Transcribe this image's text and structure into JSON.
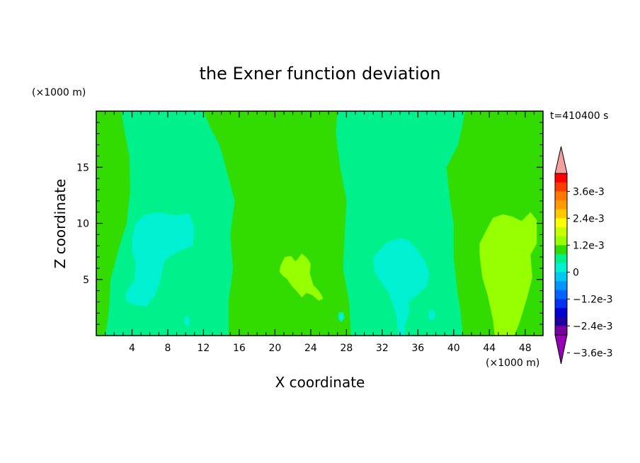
{
  "chart_data": {
    "type": "contour",
    "title": "the Exner function deviation",
    "xlabel": "X coordinate",
    "ylabel": "Z coordinate",
    "x_unit": "(×1000 m)",
    "y_unit": "(×1000 m)",
    "time_label": "t=410400 s",
    "xlim": [
      0,
      50
    ],
    "ylim": [
      0,
      20
    ],
    "x_ticks": [
      "4",
      "8",
      "12",
      "16",
      "20",
      "24",
      "28",
      "32",
      "36",
      "40",
      "44",
      "48"
    ],
    "y_ticks": [
      "5",
      "10",
      "15"
    ],
    "colorbar": {
      "tick_labels": [
        "3.6e-3",
        "2.4e-3",
        "1.2e-3",
        "0",
        "−1.2e-3",
        "−2.4e-3",
        "−3.6e-3"
      ],
      "levels_top_to_bottom": [
        0.0045,
        0.004,
        0.0035,
        0.003,
        0.0025,
        0.002,
        0.0015,
        0.001,
        0.0005,
        0,
        -0.0005,
        -0.001,
        -0.0015,
        -0.002,
        -0.0025,
        -0.003,
        -0.0035,
        -0.004,
        -0.0045
      ],
      "colors_top_to_bottom": [
        "#f4a0a0",
        "#ff0000",
        "#ff3c00",
        "#ff7800",
        "#ff9b00",
        "#ffc800",
        "#ffff00",
        "#c8ff00",
        "#96ff00",
        "#32dc00",
        "#00f08c",
        "#00f0d2",
        "#00c8f0",
        "#0096ff",
        "#0064ff",
        "#0032f0",
        "#0000d2",
        "#1e00a0",
        "#7800a0",
        "#9600b4"
      ]
    },
    "regions": [
      {
        "level": "0 to 0.5e-3",
        "color": "#32dc00",
        "role": "background",
        "polygon": []
      },
      {
        "level": "-0.5e-3 to 0",
        "color": "#00f08c",
        "polygon": [
          [
            2.8,
            20
          ],
          [
            8,
            20
          ],
          [
            12,
            20
          ],
          [
            12.8,
            18.5
          ],
          [
            13.8,
            17
          ],
          [
            14.5,
            15
          ],
          [
            15.5,
            12
          ],
          [
            15,
            9
          ],
          [
            15.3,
            6
          ],
          [
            14.8,
            3
          ],
          [
            14.8,
            0
          ],
          [
            1,
            0
          ],
          [
            1.4,
            2
          ],
          [
            1.6,
            5
          ],
          [
            2.6,
            8
          ],
          [
            3.4,
            10
          ],
          [
            3.8,
            13
          ],
          [
            3.7,
            16
          ],
          [
            3.2,
            18
          ]
        ]
      },
      {
        "level": "-0.5e-3 to 0",
        "color": "#00f08c",
        "polygon": [
          [
            27,
            20
          ],
          [
            35,
            20
          ],
          [
            41.3,
            20
          ],
          [
            40.5,
            17
          ],
          [
            39.2,
            15
          ],
          [
            39.6,
            12
          ],
          [
            40,
            10
          ],
          [
            40,
            7
          ],
          [
            40.4,
            4
          ],
          [
            40.8,
            2
          ],
          [
            41,
            0
          ],
          [
            28.5,
            0
          ],
          [
            28.3,
            3
          ],
          [
            27.6,
            6
          ],
          [
            27.8,
            9
          ],
          [
            28,
            12
          ],
          [
            27.3,
            15
          ],
          [
            26.8,
            18
          ]
        ]
      },
      {
        "level": "-1e-3 to -0.5e-3",
        "color": "#00f0d2",
        "polygon": [
          [
            4.4,
            10
          ],
          [
            5.5,
            10.8
          ],
          [
            7,
            11
          ],
          [
            8.8,
            10.7
          ],
          [
            10.4,
            10.9
          ],
          [
            11,
            9.5
          ],
          [
            10.8,
            8
          ],
          [
            9.5,
            7.6
          ],
          [
            8.5,
            7.2
          ],
          [
            7.6,
            6.6
          ],
          [
            7.2,
            5
          ],
          [
            6.6,
            3.6
          ],
          [
            5.6,
            2.6
          ],
          [
            4.5,
            2.7
          ],
          [
            3.5,
            3
          ],
          [
            3.2,
            3.5
          ],
          [
            3.6,
            4.2
          ],
          [
            4.3,
            5
          ],
          [
            4.4,
            6.5
          ],
          [
            4,
            7.5
          ],
          [
            4,
            8.8
          ]
        ]
      },
      {
        "level": "-1e-3 to -0.5e-3",
        "color": "#00f0d2",
        "polygon": [
          [
            31,
            7
          ],
          [
            32.5,
            8.3
          ],
          [
            34,
            8.7
          ],
          [
            35,
            8.5
          ],
          [
            36,
            7.6
          ],
          [
            36.8,
            6.6
          ],
          [
            37.3,
            5.5
          ],
          [
            37,
            4.4
          ],
          [
            36,
            3.7
          ],
          [
            35,
            3
          ],
          [
            35,
            2
          ],
          [
            34.5,
            0.8
          ],
          [
            34.5,
            0
          ],
          [
            33.8,
            0
          ],
          [
            33.6,
            1.8
          ],
          [
            32.8,
            3.7
          ],
          [
            31.8,
            4.9
          ],
          [
            31.1,
            5.7
          ]
        ]
      },
      {
        "level": "-1e-3 to -0.5e-3",
        "color": "#00f0d2",
        "polygon": [
          [
            9.9,
            1.6
          ],
          [
            10.3,
            1.8
          ],
          [
            10.5,
            1.3
          ],
          [
            10.3,
            0.8
          ],
          [
            9.9,
            1
          ]
        ]
      },
      {
        "level": "-1e-3 to -0.5e-3",
        "color": "#00f0d2",
        "polygon": [
          [
            37.2,
            2.2
          ],
          [
            37.7,
            2.3
          ],
          [
            38,
            1.8
          ],
          [
            37.6,
            1.3
          ],
          [
            37.2,
            1.6
          ]
        ]
      },
      {
        "level": "-1e-3 to -0.5e-3",
        "color": "#00f0d2",
        "polygon": [
          [
            27.1,
            2
          ],
          [
            27.6,
            2.1
          ],
          [
            27.8,
            1.6
          ],
          [
            27.4,
            1.2
          ],
          [
            27.1,
            1.5
          ]
        ]
      },
      {
        "level": "0.5e-3 to 1e-3",
        "color": "#96ff00",
        "polygon": [
          [
            43.8,
            9.6
          ],
          [
            44.4,
            10.5
          ],
          [
            45.5,
            10.8
          ],
          [
            46.6,
            10.6
          ],
          [
            47.6,
            10.2
          ],
          [
            48.6,
            11
          ],
          [
            49.3,
            10.3
          ],
          [
            49.3,
            8.2
          ],
          [
            48.6,
            7.2
          ],
          [
            48.8,
            5.2
          ],
          [
            48.3,
            3.6
          ],
          [
            47.7,
            2
          ],
          [
            47.3,
            1
          ],
          [
            46.8,
            0
          ],
          [
            44.6,
            0
          ],
          [
            44.4,
            1.4
          ],
          [
            43.8,
            3.6
          ],
          [
            43.2,
            5.2
          ],
          [
            42.9,
            7.2
          ],
          [
            42.9,
            8.2
          ]
        ]
      },
      {
        "level": "0.5e-3 to 1e-3",
        "color": "#96ff00",
        "polygon": [
          [
            20.6,
            6.2
          ],
          [
            21.1,
            7
          ],
          [
            21.8,
            7.1
          ],
          [
            22.3,
            6.6
          ],
          [
            23,
            7.3
          ],
          [
            23.6,
            6.9
          ],
          [
            24,
            6.4
          ],
          [
            23.9,
            5.5
          ],
          [
            24.3,
            4.5
          ],
          [
            25,
            3.9
          ],
          [
            25.4,
            3.3
          ],
          [
            24.9,
            3.1
          ],
          [
            24.2,
            3.6
          ],
          [
            23.5,
            3.8
          ],
          [
            23,
            3.4
          ],
          [
            22.5,
            3.9
          ],
          [
            21.9,
            4.4
          ],
          [
            21.3,
            5.1
          ],
          [
            20.9,
            5.3
          ],
          [
            20.5,
            5.7
          ]
        ]
      }
    ]
  }
}
